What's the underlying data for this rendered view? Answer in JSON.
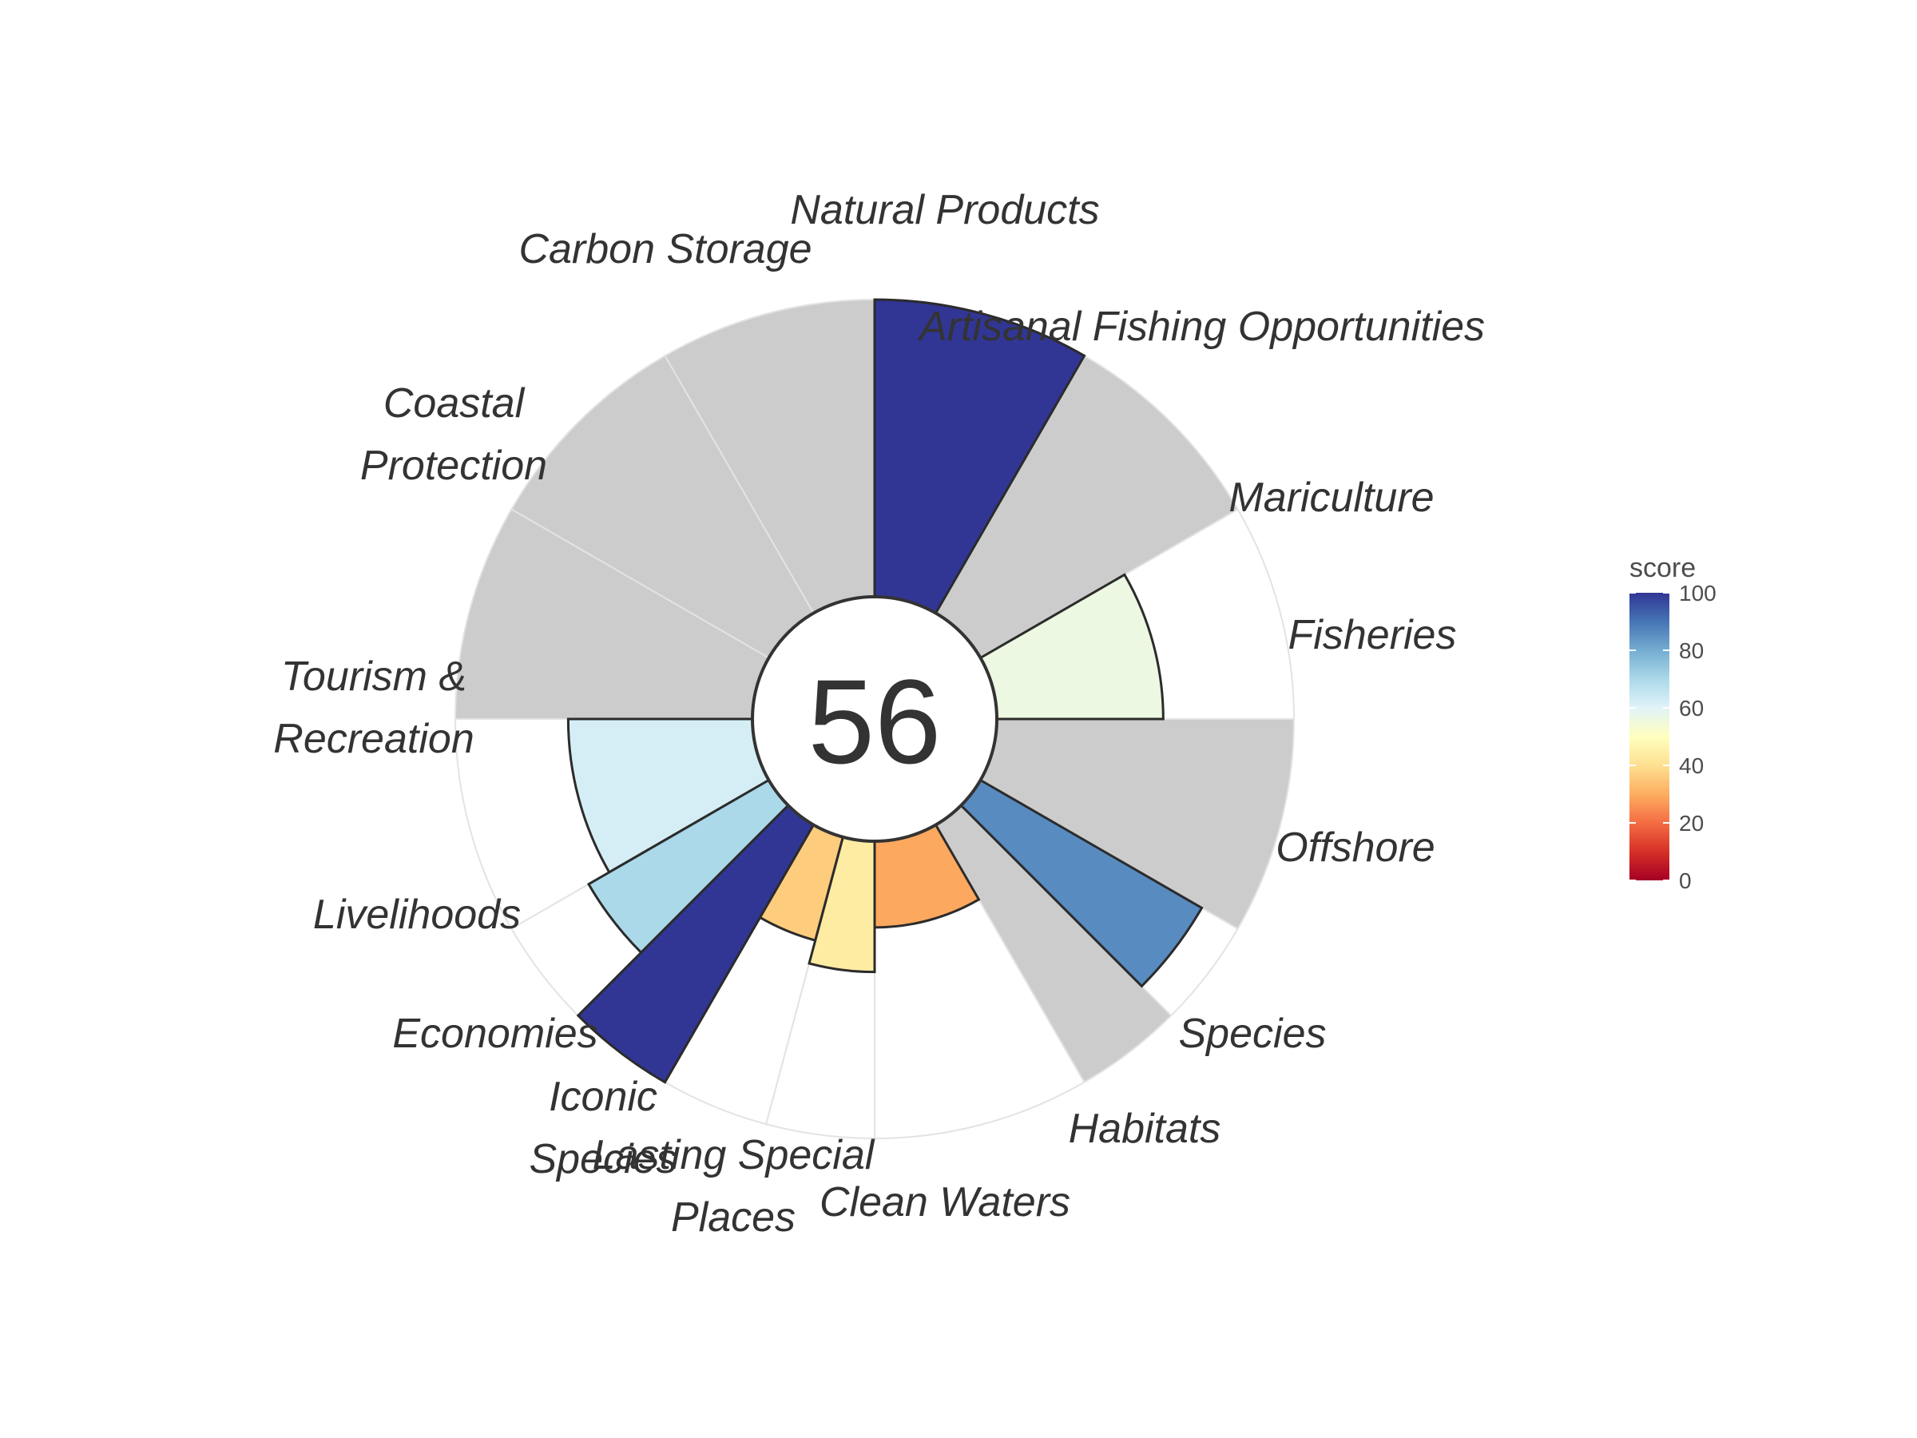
{
  "chart_data": {
    "type": "bar",
    "coordinate_system": "polar",
    "overall_score": "56",
    "ylim": [
      0,
      100
    ],
    "grid": false,
    "legend": {
      "title": "score",
      "placement": "right",
      "ticks": [
        "100",
        "80",
        "60",
        "40",
        "20",
        "0"
      ],
      "tick_values": [
        100,
        80,
        60,
        40,
        20,
        0
      ],
      "colors": {
        "0": "#a50026",
        "10": "#d73027",
        "20": "#f46d43",
        "30": "#fdae61",
        "40": "#fee090",
        "50": "#ffffbf",
        "60": "#e0f3f8",
        "70": "#abd9e9",
        "80": "#74add1",
        "90": "#4575b4",
        "100": "#313695"
      }
    },
    "na_color": "#cccccc",
    "goals": [
      {
        "id": "fisheries",
        "label": [
          "Fisheries"
        ],
        "score": 56,
        "weight": 1
      },
      {
        "id": "mariculture",
        "label": [
          "Mariculture"
        ],
        "score": null,
        "weight": 1
      },
      {
        "id": "artisanal-fishing",
        "label": [
          "Artisanal Fishing Opportunities"
        ],
        "score": 100,
        "weight": 1
      },
      {
        "id": "natural-products",
        "label": [
          "Natural Products"
        ],
        "score": null,
        "weight": 1
      },
      {
        "id": "carbon-storage",
        "label": [
          "Carbon Storage"
        ],
        "score": null,
        "weight": 1
      },
      {
        "id": "coastal-protection",
        "label": [
          "Coastal",
          "Protection"
        ],
        "score": null,
        "weight": 1
      },
      {
        "id": "tourism-recreation",
        "label": [
          "Tourism &",
          "Recreation"
        ],
        "score": 62,
        "weight": 1
      },
      {
        "id": "livelihoods",
        "label": [
          "Livelihoods"
        ],
        "score": 70,
        "weight": 0.5
      },
      {
        "id": "economies",
        "label": [
          "Economies"
        ],
        "score": 100,
        "weight": 0.5
      },
      {
        "id": "iconic-species",
        "label": [
          "Iconic",
          "Species"
        ],
        "score": 36,
        "weight": 0.5
      },
      {
        "id": "lasting-special-places",
        "label": [
          "Lasting Special",
          "Places"
        ],
        "score": 44,
        "weight": 0.5
      },
      {
        "id": "clean-waters",
        "label": [
          "Clean Waters"
        ],
        "score": 29,
        "weight": 1
      },
      {
        "id": "habitats",
        "label": [
          "Habitats"
        ],
        "score": null,
        "weight": 0.5
      },
      {
        "id": "species",
        "label": [
          "Species"
        ],
        "score": 86,
        "weight": 0.5
      },
      {
        "id": "offshore",
        "label": [
          "Offshore"
        ],
        "score": null,
        "weight": 1
      }
    ]
  }
}
